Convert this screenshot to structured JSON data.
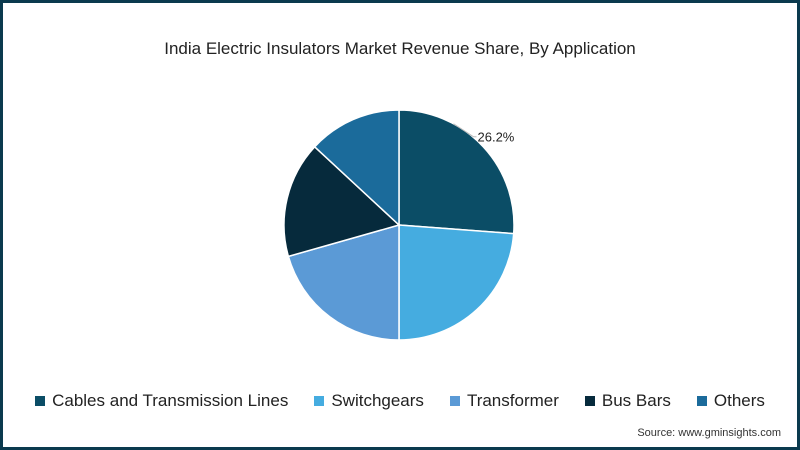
{
  "chart_data": {
    "type": "pie",
    "title": "India Electric Insulators Market Revenue Share, By Application",
    "slices": [
      {
        "label": "Cables and Transmission Lines",
        "value": 26.2,
        "color": "#0b4d66",
        "data_label": "26.2%"
      },
      {
        "label": "Switchgears",
        "value": 23.8,
        "color": "#45ace0"
      },
      {
        "label": "Transformer",
        "value": 20.6,
        "color": "#5b9ad6"
      },
      {
        "label": "Bus Bars",
        "value": 16.3,
        "color": "#062a3c"
      },
      {
        "label": "Others",
        "value": 13.1,
        "color": "#1b6b9b"
      }
    ],
    "legend_placement": "bottom",
    "source": "Source: www.gminsights.com"
  }
}
